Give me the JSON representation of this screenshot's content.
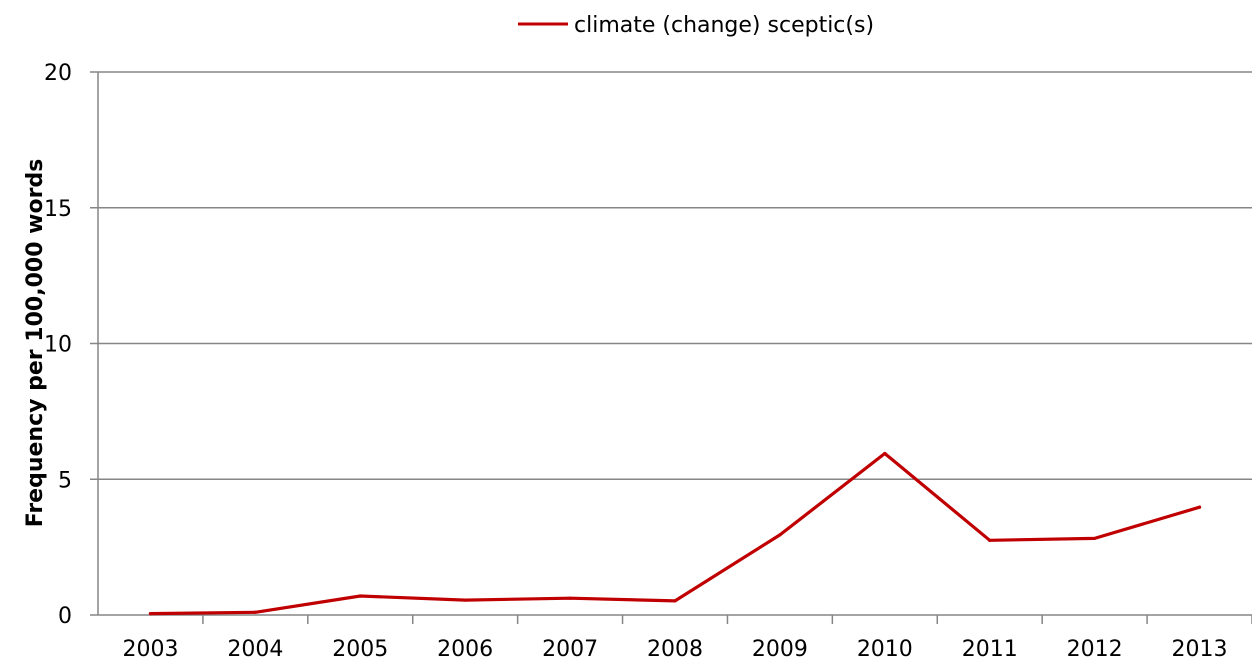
{
  "chart_data": {
    "type": "line",
    "title": "",
    "xlabel": "",
    "ylabel": "Frequency per 100,000 words",
    "categories": [
      "2003",
      "2004",
      "2005",
      "2006",
      "2007",
      "2008",
      "2009",
      "2010",
      "2011",
      "2012",
      "2013"
    ],
    "series": [
      {
        "name": "climate (change) sceptic(s)",
        "color": "#C00000",
        "values": [
          0.05,
          0.1,
          0.7,
          0.55,
          0.62,
          0.52,
          2.95,
          5.95,
          2.75,
          2.82,
          3.97
        ]
      }
    ],
    "ylim": [
      0,
      20
    ],
    "yticks": [
      "0",
      "5",
      "10",
      "15",
      "20"
    ],
    "grid": true,
    "legend_position": "top-center",
    "colors": {
      "gridline": "#868686",
      "axis": "#868686"
    }
  }
}
